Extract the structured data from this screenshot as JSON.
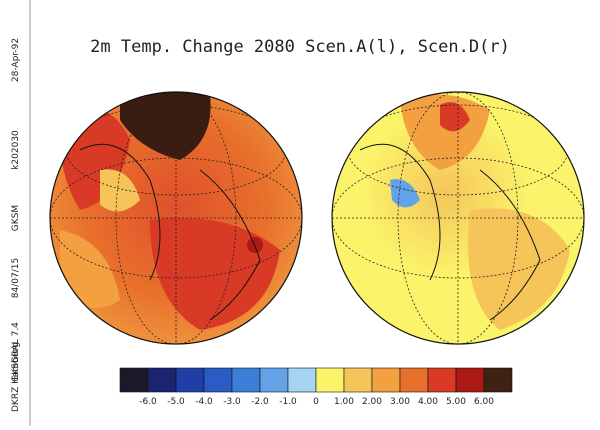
{
  "title": "2m Temp. Change 2080 Scen.A(l), Scen.D(r)",
  "side_texts": [
    "DKRZ Hamburg",
    "GKSGRAL 7.4",
    "84/07/15",
    "GKSM",
    "k202030",
    "28-Apr-92"
  ],
  "colorbar": {
    "labels": [
      "-6.0",
      "-5.0",
      "-4.0",
      "-3.0",
      "-2.0",
      "-1.0",
      "0",
      "1.00",
      "2.00",
      "3.00",
      "4.00",
      "5.00",
      "6.00"
    ],
    "colors": [
      "#1c1a2a",
      "#1b2470",
      "#1f3ea6",
      "#2b5cc6",
      "#3c7fd6",
      "#62a2e6",
      "#a6d4f2",
      "#fbf36a",
      "#f5c55a",
      "#f2a040",
      "#e8702c",
      "#d83a26",
      "#ac1a16",
      "#3d2212"
    ]
  }
}
